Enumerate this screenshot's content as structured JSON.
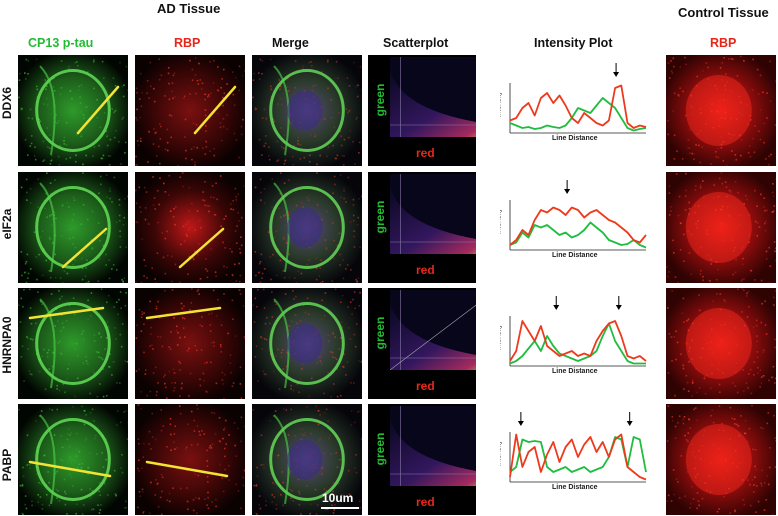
{
  "headers": {
    "ad_tissue": "AD Tissue",
    "control_tissue": "Control Tissue"
  },
  "columns": {
    "cp13": "CP13 p-tau",
    "rbp": "RBP",
    "merge": "Merge",
    "scatterplot": "Scatterplot",
    "intensity": "Intensity Plot",
    "control_rbp": "RBP"
  },
  "colors": {
    "green_label": "#22bb33",
    "red_label": "#e8261a",
    "line_red": "#ee3a1c",
    "line_green": "#1fbd3f",
    "marker": "#f2e433"
  },
  "rows": [
    {
      "label": "DDX6",
      "scatter_x": "red",
      "scatter_y": "green",
      "plot_y": "Intensity",
      "plot_x": "Line Distance"
    },
    {
      "label": "eIF2a",
      "scatter_x": "red",
      "scatter_y": "green",
      "plot_y": "Intensity",
      "plot_x": "Line Distance"
    },
    {
      "label": "HNRNPA0",
      "scatter_x": "red",
      "scatter_y": "green",
      "plot_y": "Intensity",
      "plot_x": "Line Distance"
    },
    {
      "label": "PABP",
      "scatter_x": "red",
      "scatter_y": "green",
      "plot_y": "Intensity",
      "plot_x": "Line Distance"
    }
  ],
  "scale_bar": "10um"
}
